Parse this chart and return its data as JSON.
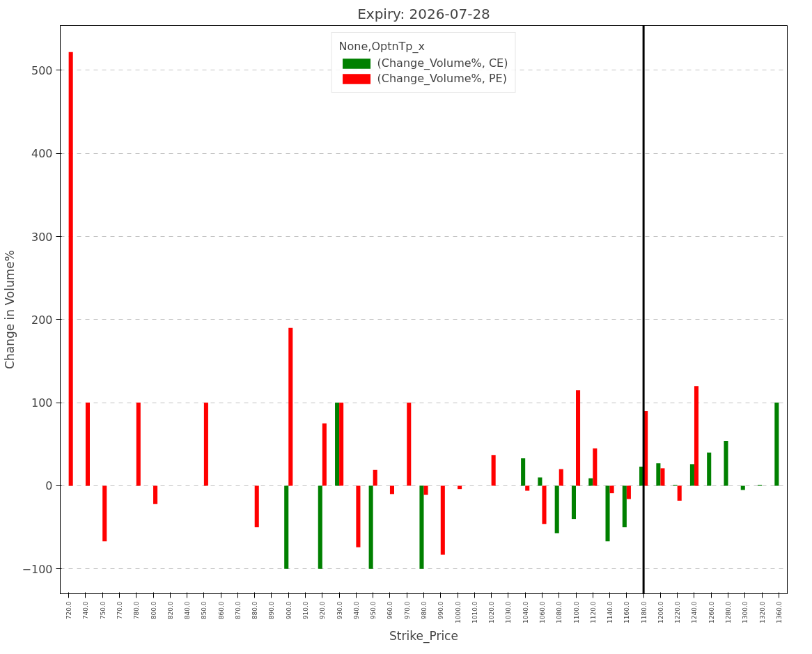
{
  "chart_data": {
    "type": "bar",
    "title": "Expiry: 2026-07-28",
    "xlabel": "Strike_Price",
    "ylabel": "Change in Volume%",
    "legend_title": "None,OptnTp_x",
    "categories": [
      "720.0",
      "740.0",
      "750.0",
      "770.0",
      "780.0",
      "800.0",
      "820.0",
      "840.0",
      "850.0",
      "860.0",
      "870.0",
      "880.0",
      "890.0",
      "900.0",
      "910.0",
      "920.0",
      "930.0",
      "940.0",
      "950.0",
      "960.0",
      "970.0",
      "980.0",
      "990.0",
      "1000.0",
      "1010.0",
      "1020.0",
      "1030.0",
      "1040.0",
      "1060.0",
      "1080.0",
      "1100.0",
      "1120.0",
      "1140.0",
      "1160.0",
      "1180.0",
      "1200.0",
      "1220.0",
      "1240.0",
      "1260.0",
      "1280.0",
      "1300.0",
      "1320.0",
      "1360.0"
    ],
    "series": [
      {
        "name": "(Change_Volume%, CE)",
        "color": "#008000",
        "values": [
          null,
          null,
          null,
          null,
          null,
          null,
          null,
          null,
          null,
          null,
          null,
          null,
          null,
          -100,
          null,
          -100,
          100,
          null,
          -100,
          null,
          null,
          -100,
          null,
          null,
          null,
          null,
          null,
          33,
          10,
          -57,
          -40,
          9,
          -67,
          -50,
          23,
          27,
          1,
          26,
          40,
          54,
          -5,
          1,
          100
        ]
      },
      {
        "name": "(Change_Volume%, PE)",
        "color": "#ff0000",
        "values": [
          522,
          100,
          -67,
          null,
          100,
          -22,
          null,
          null,
          100,
          null,
          null,
          -50,
          null,
          190,
          null,
          75,
          100,
          -74,
          19,
          -10,
          100,
          -11,
          -83,
          -4,
          null,
          37,
          null,
          -6,
          -46,
          20,
          115,
          45,
          -9,
          -16,
          90,
          21,
          -18,
          120,
          null,
          null,
          null,
          null,
          null
        ]
      }
    ],
    "ylim": [
      -130,
      554
    ],
    "yticks": [
      -100,
      0,
      100,
      200,
      300,
      400,
      500
    ],
    "grid": "y",
    "legend": "top",
    "ref_lines": [
      {
        "axis": "x",
        "value": "1180.0",
        "color": "#000000",
        "line_style": "solid"
      }
    ]
  }
}
